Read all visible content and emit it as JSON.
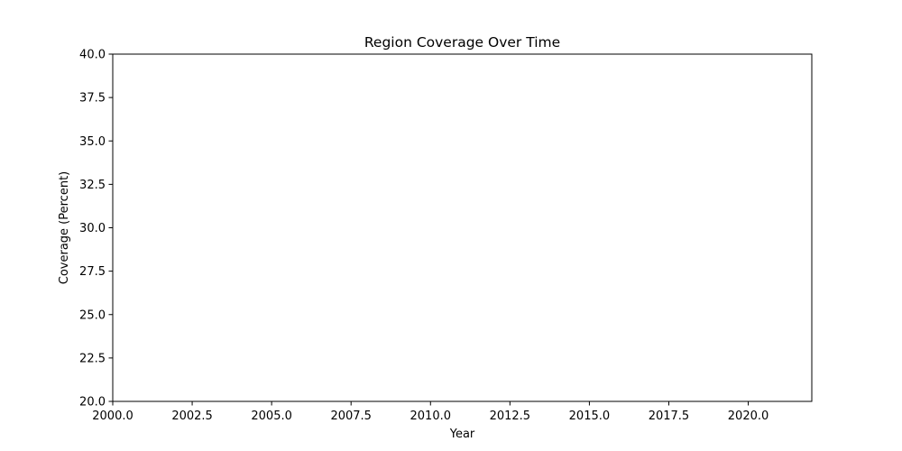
{
  "chart_data": {
    "type": "line",
    "title": "Region Coverage Over Time",
    "xlabel": "Year",
    "ylabel": "Coverage (Percent)",
    "xlim": [
      2000,
      2022
    ],
    "ylim": [
      20,
      40
    ],
    "xticks": [
      2000,
      2002.5,
      2005,
      2007.5,
      2010,
      2012.5,
      2015,
      2017.5,
      2020
    ],
    "xtick_labels": [
      "2000.0",
      "2002.5",
      "2005.0",
      "2007.5",
      "2010.0",
      "2012.5",
      "2015.0",
      "2017.5",
      "2020.0"
    ],
    "yticks": [
      20,
      22.5,
      25,
      27.5,
      30,
      32.5,
      35,
      37.5,
      40
    ],
    "ytick_labels": [
      "20.0",
      "22.5",
      "25.0",
      "27.5",
      "30.0",
      "32.5",
      "35.0",
      "37.5",
      "40.0"
    ],
    "grid": false,
    "series": [],
    "colors": {
      "axes": "#000000",
      "background": "#ffffff"
    }
  }
}
